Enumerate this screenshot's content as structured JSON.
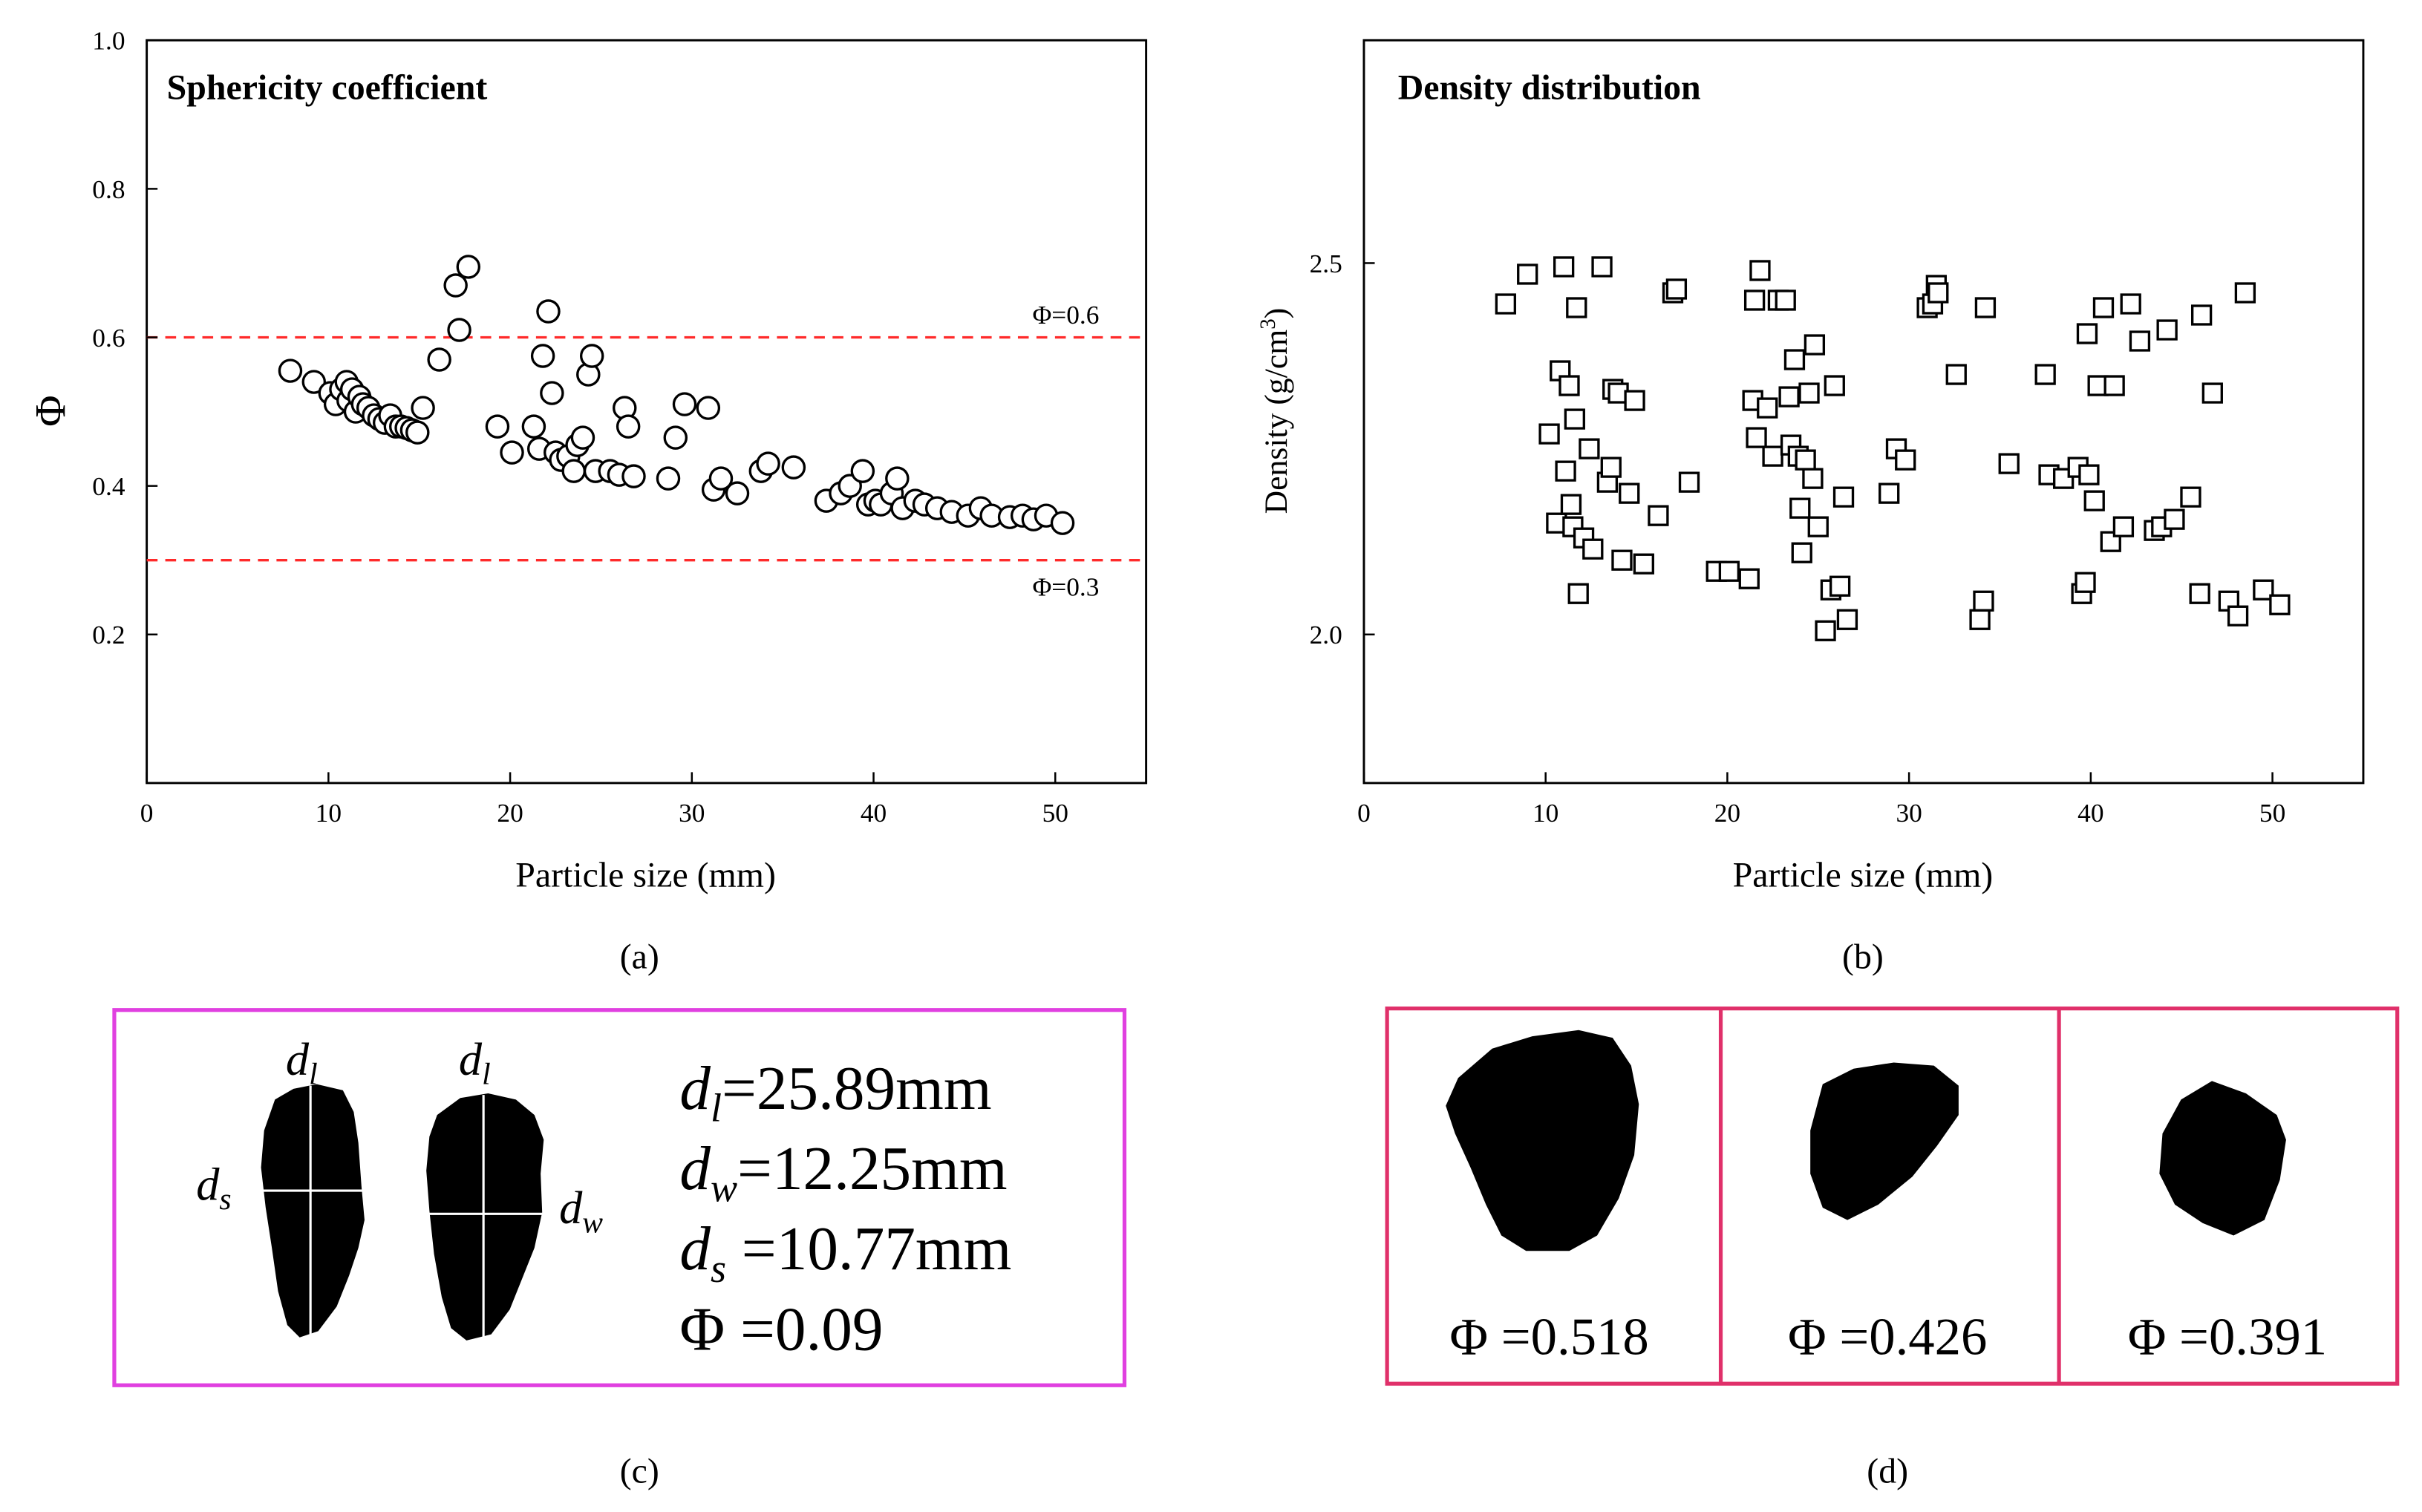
{
  "panels": {
    "a": {
      "letter": "(a)"
    },
    "b": {
      "letter": "(b)"
    },
    "c": {
      "letter": "(c)",
      "particle1": {
        "top_label": "d",
        "top_sub": "l",
        "side_label": "d",
        "side_sub": "s"
      },
      "particle2": {
        "top_label": "d",
        "top_sub": "l",
        "side_label": "d",
        "side_sub": "w"
      },
      "measurements": [
        {
          "sym": "d",
          "sub": "l",
          "text": "=25.89mm"
        },
        {
          "sym": "d",
          "sub": "w",
          "text": "=12.25mm"
        },
        {
          "sym": "d",
          "sub": "s",
          "text": " =10.77mm"
        },
        {
          "sym": "Φ",
          "sub": "",
          "text": " =0.09"
        }
      ],
      "frame_color": "#e040e0"
    },
    "d": {
      "letter": "(d)",
      "frame_color": "#e0306a",
      "cells": [
        {
          "label": "Φ =0.518"
        },
        {
          "label": "Φ =0.426"
        },
        {
          "label": "Φ =0.391"
        }
      ]
    }
  },
  "chart_data": [
    {
      "type": "scatter",
      "title": "Sphericity coefficient",
      "xlabel": "Particle size (mm)",
      "ylabel": "Φ",
      "xlim": [
        0,
        55
      ],
      "ylim": [
        0,
        1.0
      ],
      "xticks": [
        0,
        10,
        20,
        30,
        40,
        50
      ],
      "yticks": [
        0.2,
        0.4,
        0.6,
        0.8,
        1.0
      ],
      "ytick_labels": [
        "0.2",
        "0.4",
        "0.6",
        "0.8",
        "1.0"
      ],
      "marker": "circle",
      "grid": false,
      "reference_lines": [
        {
          "y": 0.6,
          "label": "Φ=0.6",
          "color": "#ff2a2a",
          "style": "dashed"
        },
        {
          "y": 0.3,
          "label": "Φ=0.3",
          "color": "#ff2a2a",
          "style": "dashed"
        }
      ],
      "points": [
        [
          7.9,
          0.555
        ],
        [
          9.2,
          0.54
        ],
        [
          10.1,
          0.525
        ],
        [
          10.4,
          0.51
        ],
        [
          10.7,
          0.53
        ],
        [
          11.0,
          0.54
        ],
        [
          11.1,
          0.515
        ],
        [
          11.3,
          0.53
        ],
        [
          11.5,
          0.5
        ],
        [
          11.7,
          0.52
        ],
        [
          11.9,
          0.51
        ],
        [
          12.2,
          0.505
        ],
        [
          12.5,
          0.495
        ],
        [
          12.8,
          0.49
        ],
        [
          13.1,
          0.485
        ],
        [
          13.4,
          0.495
        ],
        [
          13.7,
          0.48
        ],
        [
          14.0,
          0.48
        ],
        [
          14.3,
          0.478
        ],
        [
          14.6,
          0.475
        ],
        [
          14.9,
          0.472
        ],
        [
          15.2,
          0.505
        ],
        [
          16.1,
          0.57
        ],
        [
          17.0,
          0.67
        ],
        [
          17.2,
          0.61
        ],
        [
          17.7,
          0.695
        ],
        [
          19.3,
          0.48
        ],
        [
          20.1,
          0.445
        ],
        [
          21.3,
          0.48
        ],
        [
          21.6,
          0.45
        ],
        [
          21.8,
          0.575
        ],
        [
          22.1,
          0.635
        ],
        [
          22.3,
          0.525
        ],
        [
          22.5,
          0.445
        ],
        [
          22.8,
          0.435
        ],
        [
          23.2,
          0.44
        ],
        [
          23.5,
          0.42
        ],
        [
          23.7,
          0.455
        ],
        [
          24.0,
          0.465
        ],
        [
          24.3,
          0.55
        ],
        [
          24.5,
          0.575
        ],
        [
          24.7,
          0.42
        ],
        [
          25.5,
          0.42
        ],
        [
          26.0,
          0.415
        ],
        [
          26.3,
          0.505
        ],
        [
          26.5,
          0.48
        ],
        [
          26.8,
          0.413
        ],
        [
          28.7,
          0.41
        ],
        [
          29.1,
          0.465
        ],
        [
          29.6,
          0.51
        ],
        [
          30.9,
          0.505
        ],
        [
          31.2,
          0.395
        ],
        [
          31.6,
          0.41
        ],
        [
          32.5,
          0.39
        ],
        [
          33.8,
          0.42
        ],
        [
          34.2,
          0.43
        ],
        [
          35.6,
          0.425
        ],
        [
          37.4,
          0.38
        ],
        [
          38.2,
          0.39
        ],
        [
          38.7,
          0.4
        ],
        [
          39.4,
          0.42
        ],
        [
          39.7,
          0.375
        ],
        [
          40.1,
          0.38
        ],
        [
          40.4,
          0.375
        ],
        [
          41.0,
          0.39
        ],
        [
          41.3,
          0.41
        ],
        [
          41.6,
          0.37
        ],
        [
          42.3,
          0.38
        ],
        [
          42.8,
          0.375
        ],
        [
          43.5,
          0.37
        ],
        [
          44.3,
          0.365
        ],
        [
          45.2,
          0.36
        ],
        [
          45.9,
          0.37
        ],
        [
          46.5,
          0.36
        ],
        [
          47.5,
          0.358
        ],
        [
          48.2,
          0.36
        ],
        [
          48.8,
          0.355
        ],
        [
          49.5,
          0.36
        ],
        [
          50.4,
          0.35
        ]
      ]
    },
    {
      "type": "scatter",
      "title": "Density distribution",
      "xlabel": "Particle size (mm)",
      "ylabel": "Density (g/cm3)",
      "ylabel_main": "Density (g/cm",
      "ylabel_sup": "3",
      "ylabel_end": ")",
      "xlim": [
        0,
        55
      ],
      "ylim": [
        1.8,
        2.8
      ],
      "xticks": [
        0,
        10,
        20,
        30,
        40,
        50
      ],
      "yticks": [
        2.0,
        2.5
      ],
      "ytick_labels": [
        "2.0",
        "2.5"
      ],
      "marker": "square",
      "grid": false,
      "points": [
        [
          7.8,
          2.445
        ],
        [
          9.0,
          2.485
        ],
        [
          10.2,
          2.27
        ],
        [
          10.6,
          2.15
        ],
        [
          10.8,
          2.355
        ],
        [
          11.0,
          2.495
        ],
        [
          11.1,
          2.22
        ],
        [
          11.3,
          2.335
        ],
        [
          11.4,
          2.175
        ],
        [
          11.5,
          2.145
        ],
        [
          11.6,
          2.29
        ],
        [
          11.7,
          2.44
        ],
        [
          11.8,
          2.055
        ],
        [
          12.1,
          2.13
        ],
        [
          12.4,
          2.25
        ],
        [
          12.6,
          2.115
        ],
        [
          13.1,
          2.495
        ],
        [
          13.4,
          2.205
        ],
        [
          13.6,
          2.225
        ],
        [
          13.7,
          2.33
        ],
        [
          14.0,
          2.325
        ],
        [
          14.2,
          2.1
        ],
        [
          14.6,
          2.19
        ],
        [
          14.9,
          2.315
        ],
        [
          15.4,
          2.095
        ],
        [
          16.2,
          2.16
        ],
        [
          17.0,
          2.46
        ],
        [
          17.2,
          2.465
        ],
        [
          17.9,
          2.205
        ],
        [
          19.4,
          2.085
        ],
        [
          20.1,
          2.085
        ],
        [
          21.2,
          2.075
        ],
        [
          21.4,
          2.315
        ],
        [
          21.5,
          2.45
        ],
        [
          21.6,
          2.265
        ],
        [
          21.8,
          2.49
        ],
        [
          22.2,
          2.305
        ],
        [
          22.5,
          2.24
        ],
        [
          22.8,
          2.45
        ],
        [
          23.2,
          2.45
        ],
        [
          23.4,
          2.32
        ],
        [
          23.5,
          2.255
        ],
        [
          23.7,
          2.37
        ],
        [
          23.9,
          2.24
        ],
        [
          24.0,
          2.17
        ],
        [
          24.1,
          2.11
        ],
        [
          24.3,
          2.235
        ],
        [
          24.5,
          2.325
        ],
        [
          24.7,
          2.21
        ],
        [
          24.8,
          2.39
        ],
        [
          25.0,
          2.145
        ],
        [
          25.4,
          2.005
        ],
        [
          25.7,
          2.06
        ],
        [
          25.9,
          2.335
        ],
        [
          26.2,
          2.065
        ],
        [
          26.4,
          2.185
        ],
        [
          26.6,
          2.02
        ],
        [
          28.9,
          2.19
        ],
        [
          29.3,
          2.25
        ],
        [
          29.8,
          2.235
        ],
        [
          31.0,
          2.44
        ],
        [
          31.3,
          2.445
        ],
        [
          31.5,
          2.47
        ],
        [
          31.6,
          2.46
        ],
        [
          32.6,
          2.35
        ],
        [
          33.9,
          2.02
        ],
        [
          34.1,
          2.045
        ],
        [
          34.2,
          2.44
        ],
        [
          35.5,
          2.23
        ],
        [
          37.5,
          2.35
        ],
        [
          37.7,
          2.215
        ],
        [
          38.5,
          2.21
        ],
        [
          39.3,
          2.225
        ],
        [
          39.5,
          2.055
        ],
        [
          39.7,
          2.07
        ],
        [
          39.8,
          2.405
        ],
        [
          39.9,
          2.215
        ],
        [
          40.2,
          2.18
        ],
        [
          40.4,
          2.335
        ],
        [
          40.7,
          2.44
        ],
        [
          41.1,
          2.125
        ],
        [
          41.3,
          2.335
        ],
        [
          41.8,
          2.145
        ],
        [
          42.2,
          2.445
        ],
        [
          42.7,
          2.395
        ],
        [
          43.5,
          2.14
        ],
        [
          43.9,
          2.145
        ],
        [
          44.2,
          2.41
        ],
        [
          44.6,
          2.155
        ],
        [
          45.5,
          2.185
        ],
        [
          46.0,
          2.055
        ],
        [
          46.1,
          2.43
        ],
        [
          46.7,
          2.325
        ],
        [
          47.6,
          2.045
        ],
        [
          48.1,
          2.025
        ],
        [
          48.5,
          2.46
        ],
        [
          49.5,
          2.06
        ],
        [
          50.4,
          2.04
        ]
      ]
    }
  ]
}
